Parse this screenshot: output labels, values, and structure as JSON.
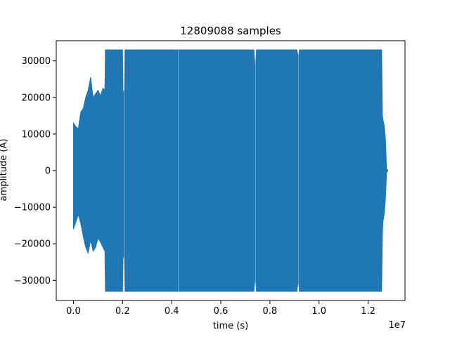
{
  "chart_data": {
    "type": "line",
    "title": "12809088 samples",
    "xlabel": "time (s)",
    "ylabel": "amplitude (A)",
    "x_offset_label": "1e7",
    "xlim": [
      -700000,
      13500000
    ],
    "ylim": [
      35500,
      -35500
    ],
    "y_inverted": true,
    "grid": false,
    "legend": "none",
    "x_ticks": [
      0,
      2000000,
      4000000,
      6000000,
      8000000,
      10000000,
      12000000
    ],
    "x_tick_labels": [
      "0.0",
      "0.2",
      "0.4",
      "0.6",
      "0.8",
      "1.0",
      "1.2"
    ],
    "y_ticks": [
      -30000,
      -20000,
      -10000,
      0,
      10000,
      20000,
      30000
    ],
    "y_tick_labels": [
      "−30000",
      "−20000",
      "−10000",
      "0",
      "10000",
      "20000",
      "30000"
    ],
    "colors": {
      "line": "#1f77b4"
    },
    "series": [
      {
        "envelope_x": [
          0,
          100000,
          200000,
          300000,
          400000,
          500000,
          600000,
          700000,
          800000,
          900000,
          1000000,
          1100000,
          1200000,
          1280000,
          1300000,
          2000000,
          2020000,
          2060000,
          2080000,
          2100000,
          4250000,
          4300000,
          7350000,
          7400000,
          7450000,
          9100000,
          9150000,
          9200000,
          12550000,
          12580000,
          12600000,
          12650000,
          12700000,
          12750000,
          12809088
        ],
        "envelope_min": [
          -16000,
          -14000,
          -12000,
          -14500,
          -18000,
          -21000,
          -22500,
          -19000,
          -22000,
          -21000,
          -18500,
          -19500,
          -21000,
          -22000,
          -33000,
          -33000,
          -24000,
          -23000,
          -24000,
          -33000,
          -33000,
          -33000,
          -33000,
          -29000,
          -33000,
          -33000,
          -30000,
          -33000,
          -33000,
          -17000,
          -14000,
          -12000,
          -8000,
          -500,
          0
        ],
        "envelope_max": [
          13000,
          12000,
          11500,
          16000,
          17000,
          20000,
          22000,
          25500,
          20000,
          21000,
          22000,
          20500,
          22500,
          22000,
          33000,
          33000,
          20000,
          22000,
          21000,
          33000,
          33000,
          33000,
          33000,
          27500,
          33000,
          33000,
          31000,
          33000,
          33000,
          15000,
          14000,
          12500,
          9000,
          500,
          0
        ]
      }
    ]
  }
}
